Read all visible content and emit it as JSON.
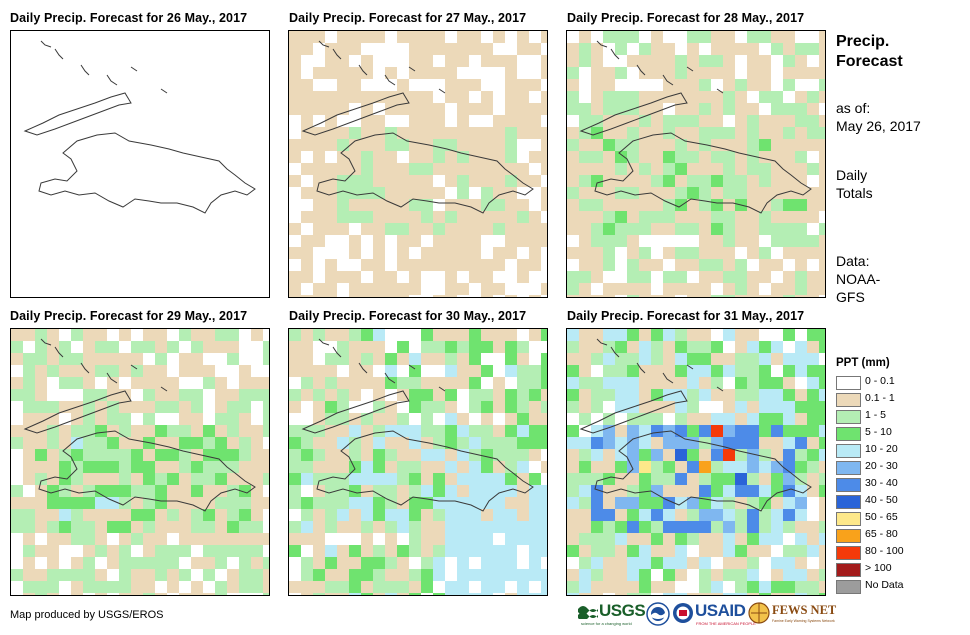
{
  "panels": [
    {
      "title": "Daily Precip. Forecast for 26 May., 2017",
      "level": 0
    },
    {
      "title": "Daily Precip. Forecast for 27 May., 2017",
      "level": 1
    },
    {
      "title": "Daily Precip. Forecast for 28 May., 2017",
      "level": 2
    },
    {
      "title": "Daily Precip. Forecast for 29 May., 2017",
      "level": 2
    },
    {
      "title": "Daily Precip. Forecast for 30 May., 2017",
      "level": 3
    },
    {
      "title": "Daily Precip. Forecast for 31 May., 2017",
      "level": 4
    }
  ],
  "sidebar": {
    "heading_line1": "Precip.",
    "heading_line2": "Forecast",
    "asof_line1": "as of:",
    "asof_line2": "May 26, 2017",
    "totals_line1": "Daily",
    "totals_line2": "Totals",
    "data_line1": "Data:",
    "data_line2": "NOAA-",
    "data_line3": "GFS"
  },
  "legend": {
    "title": "PPT (mm)",
    "items": [
      {
        "label": "0 - 0.1",
        "color": "#ffffff"
      },
      {
        "label": "0.1 - 1",
        "color": "#ecd9b9"
      },
      {
        "label": "1 - 5",
        "color": "#b4eeb4"
      },
      {
        "label": "5 - 10",
        "color": "#6fe36f"
      },
      {
        "label": "10 - 20",
        "color": "#b9eaf6"
      },
      {
        "label": "20 - 30",
        "color": "#7fb7f0"
      },
      {
        "label": "30 - 40",
        "color": "#4d8be8"
      },
      {
        "label": "40 - 50",
        "color": "#2a64d8"
      },
      {
        "label": "50 - 65",
        "color": "#fde88a"
      },
      {
        "label": "65 - 80",
        "color": "#f9a21b"
      },
      {
        "label": "80 - 100",
        "color": "#f53a0a"
      },
      {
        "label": "> 100",
        "color": "#a31b1b"
      },
      {
        "label": "No Data",
        "color": "#9c9c9c"
      }
    ]
  },
  "footer": {
    "credit": "Map produced by USGS/EROS"
  },
  "logos": {
    "usgs": "USGS",
    "usgs_tagline": "science for a changing world",
    "usaid": "USAID",
    "usaid_tagline": "FROM THE AMERICAN PEOPLE",
    "fewsnet": "FEWS NET",
    "fewsnet_tagline": "Famine Early Warning Systems Network"
  }
}
